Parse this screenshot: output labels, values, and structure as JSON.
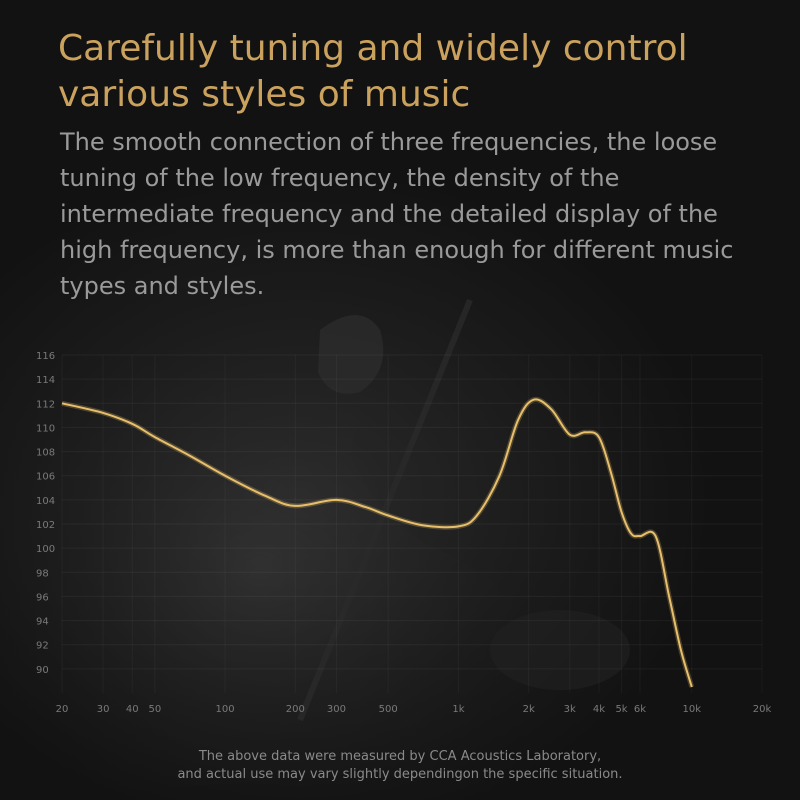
{
  "header": {
    "title_line1": "Carefully tuning and widely control",
    "title_line2": "various styles of music",
    "subtitle": "The smooth connection of three frequencies, the loose tuning of the low frequency, the density of the intermediate frequency and the detailed display of the high frequency, is more than enough for different music types and styles."
  },
  "footer": {
    "line1": "The above data were measured by CCA Acoustics Laboratory,",
    "line2": "and actual use may vary slightly dependingon the specific situation."
  },
  "colors": {
    "title": "#caa25e",
    "curve": "#e8bf6a",
    "text_muted": "#9a9a9a",
    "tick": "#7a7a7a"
  },
  "chart_data": {
    "type": "line",
    "title": "",
    "xlabel": "",
    "ylabel": "",
    "x_scale": "log",
    "xlim": [
      20,
      20000
    ],
    "ylim": [
      88,
      116
    ],
    "x_ticks": [
      {
        "value": 20,
        "label": "20"
      },
      {
        "value": 30,
        "label": "30"
      },
      {
        "value": 40,
        "label": "40"
      },
      {
        "value": 50,
        "label": "50"
      },
      {
        "value": 100,
        "label": "100"
      },
      {
        "value": 200,
        "label": "200"
      },
      {
        "value": 300,
        "label": "300"
      },
      {
        "value": 500,
        "label": "500"
      },
      {
        "value": 1000,
        "label": "1k"
      },
      {
        "value": 2000,
        "label": "2k"
      },
      {
        "value": 3000,
        "label": "3k"
      },
      {
        "value": 4000,
        "label": "4k"
      },
      {
        "value": 5000,
        "label": "5k"
      },
      {
        "value": 6000,
        "label": "6k"
      },
      {
        "value": 10000,
        "label": "10k"
      },
      {
        "value": 20000,
        "label": "20k"
      }
    ],
    "y_ticks": [
      90,
      92,
      94,
      96,
      98,
      100,
      102,
      104,
      106,
      108,
      110,
      112,
      114,
      116
    ],
    "grid": true,
    "series": [
      {
        "x": [
          20,
          30,
          40,
          50,
          70,
          100,
          150,
          200,
          300,
          400,
          500,
          700,
          1000,
          1200,
          1500,
          1800,
          2100,
          2500,
          3000,
          3500,
          4000,
          4500,
          5000,
          5500,
          6000,
          7000,
          8000,
          9000,
          10000
        ],
        "values": [
          112.0,
          111.2,
          110.3,
          109.2,
          107.7,
          106.0,
          104.3,
          103.5,
          104.0,
          103.4,
          102.7,
          101.9,
          101.8,
          102.7,
          106.0,
          110.6,
          112.3,
          111.5,
          109.4,
          109.6,
          109.2,
          106.3,
          103.0,
          101.2,
          101.0,
          101.0,
          96.0,
          91.5,
          88.5
        ]
      }
    ]
  }
}
